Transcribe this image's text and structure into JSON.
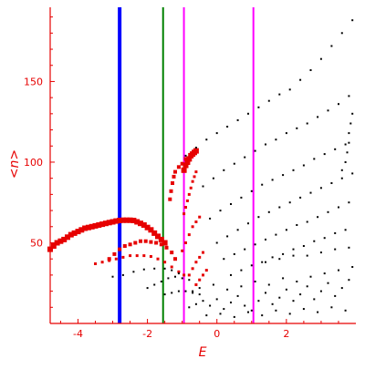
{
  "chart_data": {
    "type": "scatter",
    "xlabel": "E",
    "ylabel": "<n>",
    "xlim": [
      -4.8,
      4.0
    ],
    "ylim": [
      0,
      196
    ],
    "xticks": [
      -4,
      -2,
      0,
      2
    ],
    "yticks": [
      50,
      100,
      150
    ],
    "xtick_labels": [
      "-4",
      "-2",
      "0",
      "2"
    ],
    "ytick_labels": [
      "50",
      "100",
      "150"
    ],
    "grid": false,
    "axis_color": "#e60000",
    "vertical_lines": [
      {
        "x": -2.8,
        "color": "#0000ff",
        "style": "thick"
      },
      {
        "x": -1.55,
        "color": "#008000",
        "style": "normal"
      },
      {
        "x": -0.95,
        "color": "#ff00ff",
        "style": "normal"
      },
      {
        "x": 1.05,
        "color": "#ff00ff",
        "style": "normal"
      }
    ],
    "series": [
      {
        "color": "#e60000",
        "marker": "large-square",
        "points": [
          [
            -4.8,
            46
          ],
          [
            -4.7,
            48
          ],
          [
            -4.6,
            50
          ],
          [
            -4.5,
            51
          ],
          [
            -4.4,
            52
          ],
          [
            -4.3,
            53.5
          ],
          [
            -4.2,
            55
          ],
          [
            -4.1,
            56
          ],
          [
            -4.0,
            57
          ],
          [
            -3.9,
            58
          ],
          [
            -3.8,
            59
          ],
          [
            -3.7,
            59.5
          ],
          [
            -3.6,
            60
          ],
          [
            -3.5,
            60.5
          ],
          [
            -3.4,
            61
          ],
          [
            -3.3,
            61.5
          ],
          [
            -3.2,
            62
          ],
          [
            -3.1,
            62.5
          ],
          [
            -3.0,
            63
          ],
          [
            -2.9,
            63.5
          ],
          [
            -2.8,
            63.8
          ],
          [
            -2.7,
            64
          ],
          [
            -2.6,
            64
          ],
          [
            -2.5,
            64
          ],
          [
            -2.4,
            63.8
          ],
          [
            -2.3,
            63
          ],
          [
            -2.2,
            62
          ],
          [
            -2.1,
            61
          ],
          [
            -2.0,
            59.5
          ],
          [
            -1.9,
            58
          ],
          [
            -1.8,
            56
          ],
          [
            -1.7,
            54
          ],
          [
            -1.6,
            52
          ],
          [
            -1.5,
            50
          ],
          [
            -0.95,
            95
          ],
          [
            -0.9,
            98
          ],
          [
            -0.85,
            100
          ],
          [
            -0.8,
            102
          ],
          [
            -0.75,
            104
          ],
          [
            -0.7,
            105
          ],
          [
            -0.65,
            106
          ],
          [
            -0.6,
            107
          ]
        ]
      },
      {
        "color": "#e60000",
        "marker": "medium-square",
        "points": [
          [
            -3.1,
            40
          ],
          [
            -2.95,
            43
          ],
          [
            -2.8,
            46
          ],
          [
            -2.65,
            48
          ],
          [
            -2.5,
            49
          ],
          [
            -2.35,
            50
          ],
          [
            -2.2,
            51
          ],
          [
            -2.05,
            51
          ],
          [
            -1.9,
            50.5
          ],
          [
            -1.75,
            50
          ],
          [
            -1.6,
            49
          ],
          [
            -1.45,
            47
          ],
          [
            -1.3,
            44
          ],
          [
            -1.2,
            40
          ],
          [
            -1.35,
            77
          ],
          [
            -1.32,
            82
          ],
          [
            -1.28,
            87
          ],
          [
            -1.24,
            91
          ],
          [
            -1.2,
            94
          ],
          [
            -1.1,
            97
          ],
          [
            -1.0,
            99
          ],
          [
            -0.9,
            102
          ]
        ]
      },
      {
        "color": "#e60000",
        "marker": "small-square",
        "points": [
          [
            -3.5,
            37
          ],
          [
            -3.3,
            38
          ],
          [
            -3.1,
            39
          ],
          [
            -2.9,
            40
          ],
          [
            -2.7,
            41
          ],
          [
            -2.5,
            42
          ],
          [
            -2.3,
            42
          ],
          [
            -2.1,
            42
          ],
          [
            -1.9,
            41.5
          ],
          [
            -1.7,
            40
          ],
          [
            -1.5,
            38
          ],
          [
            -1.3,
            35
          ],
          [
            -1.1,
            32
          ],
          [
            -0.95,
            30
          ],
          [
            -0.95,
            68
          ],
          [
            -0.9,
            72
          ],
          [
            -0.85,
            76
          ],
          [
            -0.8,
            80
          ],
          [
            -0.75,
            84
          ],
          [
            -0.7,
            88
          ],
          [
            -0.65,
            91
          ],
          [
            -0.6,
            94
          ],
          [
            -1.0,
            45
          ],
          [
            -0.9,
            50
          ],
          [
            -0.8,
            55
          ],
          [
            -0.7,
            60
          ],
          [
            -0.6,
            63
          ],
          [
            -0.5,
            66
          ],
          [
            -0.8,
            30
          ],
          [
            -0.7,
            34
          ],
          [
            -0.6,
            38
          ],
          [
            -0.5,
            41
          ],
          [
            -0.4,
            44
          ],
          [
            -0.6,
            24
          ],
          [
            -0.5,
            27
          ],
          [
            -0.4,
            30
          ],
          [
            -0.3,
            33
          ]
        ]
      },
      {
        "color": "#000000",
        "marker": "dot",
        "points": [
          [
            -3.0,
            29
          ],
          [
            -2.7,
            30
          ],
          [
            -2.4,
            32
          ],
          [
            -2.1,
            33.5
          ],
          [
            -1.8,
            34
          ],
          [
            -1.5,
            34
          ],
          [
            -1.3,
            33
          ],
          [
            -1.1,
            31
          ],
          [
            -2.0,
            22
          ],
          [
            -1.8,
            24
          ],
          [
            -1.6,
            26
          ],
          [
            -1.4,
            28
          ],
          [
            -1.2,
            29
          ],
          [
            -1.0,
            28
          ],
          [
            -0.8,
            27
          ],
          [
            -1.5,
            18
          ],
          [
            -1.3,
            19
          ],
          [
            -1.1,
            20
          ],
          [
            -0.9,
            20
          ],
          [
            -0.7,
            19
          ],
          [
            -0.5,
            18
          ],
          [
            -0.9,
            104
          ],
          [
            -0.6,
            109
          ],
          [
            -0.3,
            114
          ],
          [
            0.0,
            118
          ],
          [
            0.3,
            122
          ],
          [
            0.6,
            126
          ],
          [
            0.9,
            130
          ],
          [
            1.2,
            134
          ],
          [
            1.5,
            138
          ],
          [
            1.8,
            142
          ],
          [
            2.1,
            145
          ],
          [
            2.4,
            151
          ],
          [
            2.7,
            157
          ],
          [
            3.0,
            164
          ],
          [
            3.3,
            172
          ],
          [
            3.6,
            180
          ],
          [
            3.9,
            188
          ],
          [
            -0.4,
            85
          ],
          [
            -0.1,
            90
          ],
          [
            0.2,
            95
          ],
          [
            0.5,
            99
          ],
          [
            0.8,
            103
          ],
          [
            1.1,
            107
          ],
          [
            1.4,
            111
          ],
          [
            1.7,
            114
          ],
          [
            2.0,
            118
          ],
          [
            2.3,
            121
          ],
          [
            2.6,
            124
          ],
          [
            2.9,
            128
          ],
          [
            3.2,
            132
          ],
          [
            3.5,
            136
          ],
          [
            3.8,
            141
          ],
          [
            -0.2,
            65
          ],
          [
            0.1,
            70
          ],
          [
            0.4,
            74
          ],
          [
            0.7,
            78
          ],
          [
            1.0,
            82
          ],
          [
            1.3,
            86
          ],
          [
            1.6,
            89
          ],
          [
            1.9,
            92
          ],
          [
            2.2,
            95
          ],
          [
            2.5,
            98
          ],
          [
            2.8,
            102
          ],
          [
            3.1,
            105
          ],
          [
            3.4,
            108
          ],
          [
            3.7,
            111
          ],
          [
            0.0,
            50
          ],
          [
            0.3,
            54
          ],
          [
            0.6,
            58
          ],
          [
            0.9,
            62
          ],
          [
            1.2,
            66
          ],
          [
            1.5,
            69
          ],
          [
            1.8,
            72
          ],
          [
            2.1,
            75
          ],
          [
            2.4,
            78
          ],
          [
            2.7,
            81
          ],
          [
            3.0,
            84
          ],
          [
            3.3,
            87
          ],
          [
            3.6,
            90
          ],
          [
            3.9,
            93
          ],
          [
            0.2,
            40
          ],
          [
            0.5,
            43
          ],
          [
            0.8,
            46
          ],
          [
            1.1,
            49
          ],
          [
            1.4,
            52
          ],
          [
            1.7,
            55
          ],
          [
            2.0,
            58
          ],
          [
            2.3,
            61
          ],
          [
            2.6,
            63
          ],
          [
            2.9,
            66
          ],
          [
            3.2,
            69
          ],
          [
            3.5,
            72
          ],
          [
            3.8,
            75
          ],
          [
            0.4,
            30
          ],
          [
            0.7,
            33
          ],
          [
            1.0,
            36
          ],
          [
            1.3,
            38
          ],
          [
            1.6,
            41
          ],
          [
            1.9,
            43
          ],
          [
            2.2,
            46
          ],
          [
            2.5,
            48
          ],
          [
            2.8,
            51
          ],
          [
            3.1,
            53
          ],
          [
            3.4,
            56
          ],
          [
            3.7,
            58
          ],
          [
            1.4,
            38
          ],
          [
            1.8,
            40
          ],
          [
            2.2,
            42
          ],
          [
            2.6,
            42
          ],
          [
            3.0,
            44
          ],
          [
            3.4,
            46
          ],
          [
            3.8,
            47
          ],
          [
            -0.8,
            10
          ],
          [
            -0.6,
            12
          ],
          [
            -0.4,
            14
          ],
          [
            -0.2,
            11
          ],
          [
            0.0,
            15
          ],
          [
            0.2,
            9
          ],
          [
            0.4,
            13
          ],
          [
            0.6,
            17
          ],
          [
            0.8,
            11
          ],
          [
            1.0,
            8
          ],
          [
            1.2,
            14
          ],
          [
            1.4,
            19
          ],
          [
            1.6,
            12
          ],
          [
            1.8,
            16
          ],
          [
            2.0,
            21
          ],
          [
            2.2,
            14
          ],
          [
            2.4,
            18
          ],
          [
            2.6,
            23
          ],
          [
            2.8,
            15
          ],
          [
            3.0,
            20
          ],
          [
            3.2,
            25
          ],
          [
            3.4,
            17
          ],
          [
            3.6,
            22
          ],
          [
            3.8,
            27
          ],
          [
            -0.3,
            5
          ],
          [
            0.1,
            6
          ],
          [
            0.5,
            4
          ],
          [
            0.9,
            7
          ],
          [
            1.3,
            5
          ],
          [
            1.7,
            8
          ],
          [
            2.1,
            6
          ],
          [
            2.5,
            9
          ],
          [
            2.9,
            7
          ],
          [
            3.3,
            10
          ],
          [
            3.7,
            8
          ],
          [
            -0.7,
            20
          ],
          [
            -0.5,
            22
          ],
          [
            -0.1,
            24
          ],
          [
            0.3,
            21
          ],
          [
            0.7,
            23
          ],
          [
            1.1,
            26
          ],
          [
            1.5,
            24
          ],
          [
            1.9,
            28
          ],
          [
            2.3,
            26
          ],
          [
            2.7,
            29
          ],
          [
            3.1,
            31
          ],
          [
            3.5,
            33
          ],
          [
            3.9,
            35
          ],
          [
            3.6,
            95
          ],
          [
            3.7,
            100
          ],
          [
            3.75,
            106
          ],
          [
            3.8,
            112
          ],
          [
            3.8,
            118
          ],
          [
            3.85,
            124
          ],
          [
            3.9,
            130
          ]
        ]
      }
    ]
  }
}
